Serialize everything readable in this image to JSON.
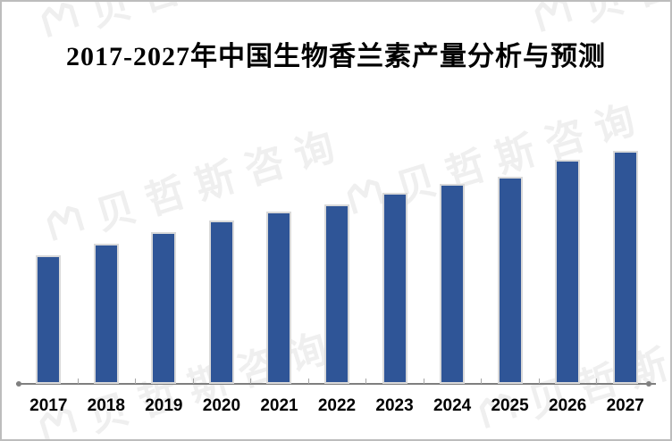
{
  "title": "2017-2027年中国生物香兰素产量分析与预测",
  "watermark": {
    "text": "贝哲斯咨询"
  },
  "colors": {
    "background": "#FFFFFF",
    "bar_fill": "#2F5597",
    "bar_border": "#D9D9D9",
    "axis_line": "#7F7F7F",
    "tick": "#A6A6A6",
    "endpoint_dot": "#808080",
    "title_text": "#000000",
    "label_text": "#000000",
    "watermark": "#EFEFEF",
    "frame_border": "#BDBDBD"
  },
  "chart_data": {
    "type": "bar",
    "title": "2017-2027年中国生物香兰素产量分析与预测",
    "categories": [
      "2017",
      "2018",
      "2019",
      "2020",
      "2021",
      "2022",
      "2023",
      "2024",
      "2025",
      "2026",
      "2027"
    ],
    "values": [
      55,
      60,
      65,
      70,
      74,
      77,
      82,
      86,
      89,
      96,
      100
    ],
    "values_unit": "relative (no value axis or data labels shown in image; heights estimated, 2027 = 100)",
    "xlabel": "",
    "ylabel": "",
    "ylim": [
      0,
      105
    ],
    "grid": false,
    "legend": false,
    "value_axis_visible": false,
    "category_axis_visible": true
  }
}
